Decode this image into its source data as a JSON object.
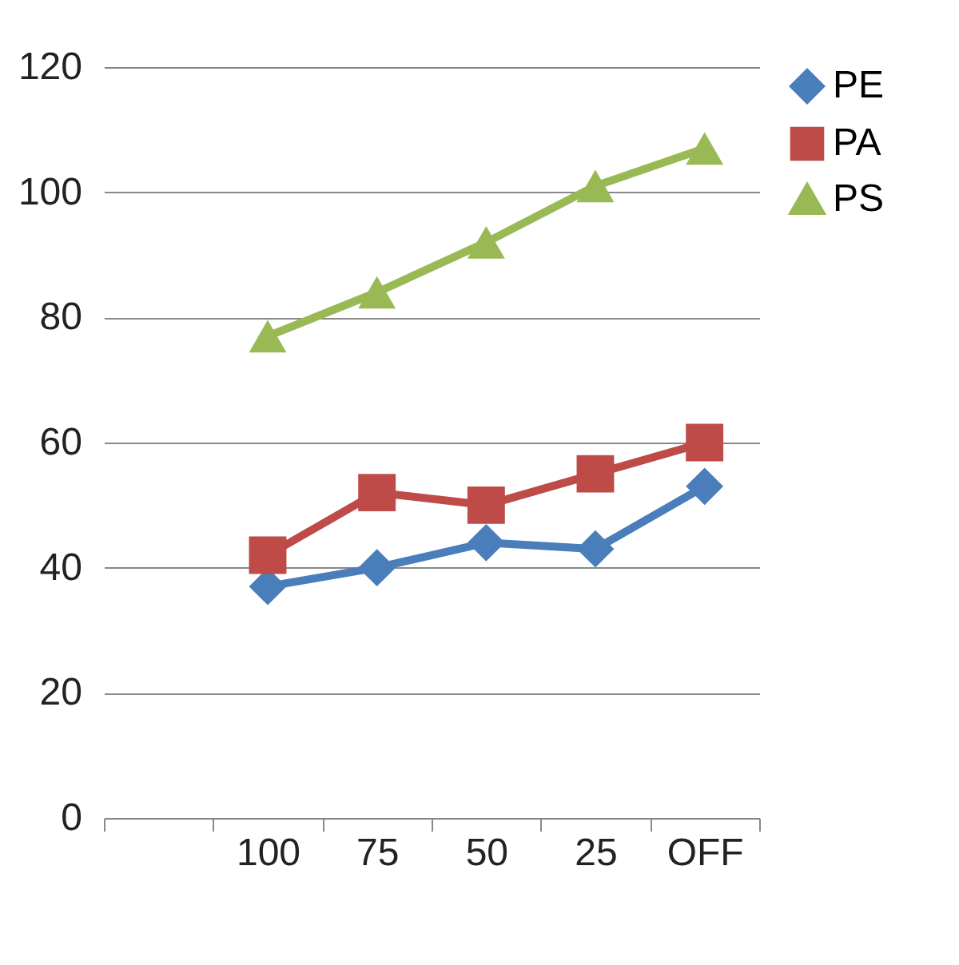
{
  "chart_data": {
    "type": "line",
    "categories": [
      null,
      "100",
      "75",
      "50",
      "25",
      "OFF"
    ],
    "series": [
      {
        "name": "PE",
        "color": "#4a7ebb",
        "marker": "diamond",
        "values": [
          null,
          37,
          40,
          44,
          43,
          53
        ]
      },
      {
        "name": "PA",
        "color": "#be4b48",
        "marker": "square",
        "values": [
          null,
          42,
          52,
          50,
          55,
          60
        ]
      },
      {
        "name": "PS",
        "color": "#98b954",
        "marker": "triangle",
        "values": [
          null,
          77,
          84,
          92,
          101,
          107
        ]
      }
    ],
    "ylim": [
      0,
      120
    ],
    "yticks": [
      0,
      20,
      40,
      60,
      80,
      100,
      120
    ],
    "grid": "y",
    "legend": "right"
  }
}
